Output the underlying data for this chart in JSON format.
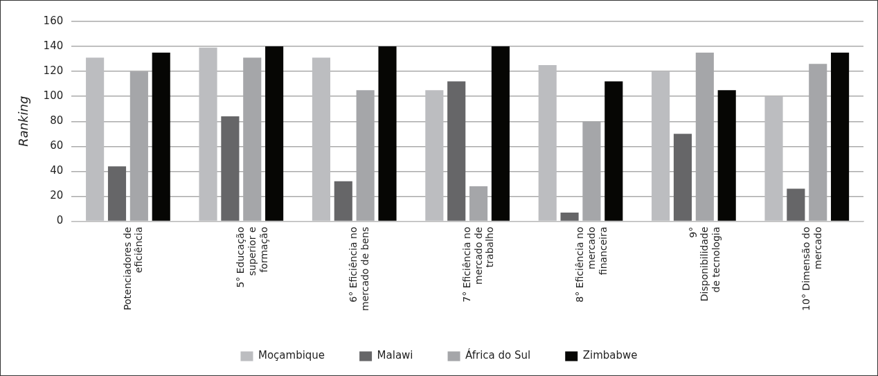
{
  "chart_data": {
    "type": "bar",
    "ylabel": "Ranking",
    "categories": [
      "Potenciadores de eficiência",
      "5° Educação superior e formação",
      "6° Eficiência no mercado de bens",
      "7° Eficiência no mercado de trabalho",
      "8° Eficiência no mercado financeira",
      "9° Disponibilidade de tecnologia",
      "10° Dimensão do mercado"
    ],
    "series": [
      {
        "name": "Moçambique",
        "color": "#bcbdc0",
        "values": [
          131,
          139,
          131,
          105,
          125,
          120,
          100
        ]
      },
      {
        "name": "Malawi",
        "color": "#666668",
        "values": [
          44,
          84,
          32,
          112,
          7,
          70,
          26
        ]
      },
      {
        "name": "África do Sul",
        "color": "#a5a6a9",
        "values": [
          120,
          131,
          105,
          28,
          80,
          135,
          126
        ]
      },
      {
        "name": "Zimbabwe",
        "color": "#060604",
        "values": [
          135,
          140,
          140,
          140,
          112,
          105,
          135
        ]
      }
    ],
    "ylim": [
      0,
      160
    ],
    "yticks": [
      0,
      20,
      40,
      60,
      80,
      100,
      120,
      140,
      160
    ],
    "grid": "y",
    "legend": "bottom"
  }
}
